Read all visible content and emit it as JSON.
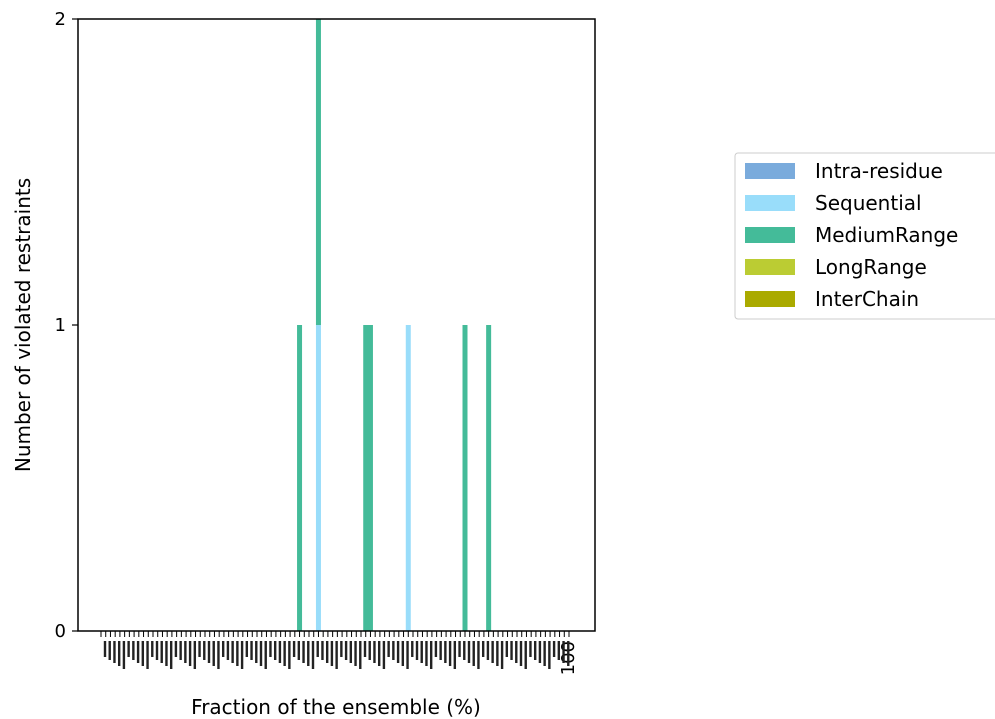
{
  "chart_data": {
    "type": "bar",
    "stacked": true,
    "xlabel": "Fraction of the ensemble (%)",
    "ylabel": "Number of violated restraints",
    "ylim": [
      0,
      2
    ],
    "yticks": [
      0,
      1,
      2
    ],
    "x_tick_labels_note": "100 overlapping rotated tick labels, last one reads 100",
    "x_last_tick_label": "100",
    "num_bars": 100,
    "grid": false,
    "legend_position": "right, outside plot",
    "series": [
      {
        "name": "Intra-residue",
        "color": "#7aabdc",
        "bars": []
      },
      {
        "name": "Sequential",
        "color": "#99ddfa",
        "bars": [
          {
            "index": 46,
            "value": 1
          },
          {
            "index": 65,
            "value": 1
          }
        ]
      },
      {
        "name": "MediumRange",
        "color": "#44bb99",
        "bars": [
          {
            "index": 42,
            "value": 1
          },
          {
            "index": 46,
            "value": 1
          },
          {
            "index": 56,
            "value": 1
          },
          {
            "index": 57,
            "value": 1
          },
          {
            "index": 77,
            "value": 1
          },
          {
            "index": 82,
            "value": 1
          }
        ]
      },
      {
        "name": "LongRange",
        "color": "#bbcc33",
        "bars": []
      },
      {
        "name": "InterChain",
        "color": "#aaaa00",
        "bars": []
      }
    ]
  }
}
